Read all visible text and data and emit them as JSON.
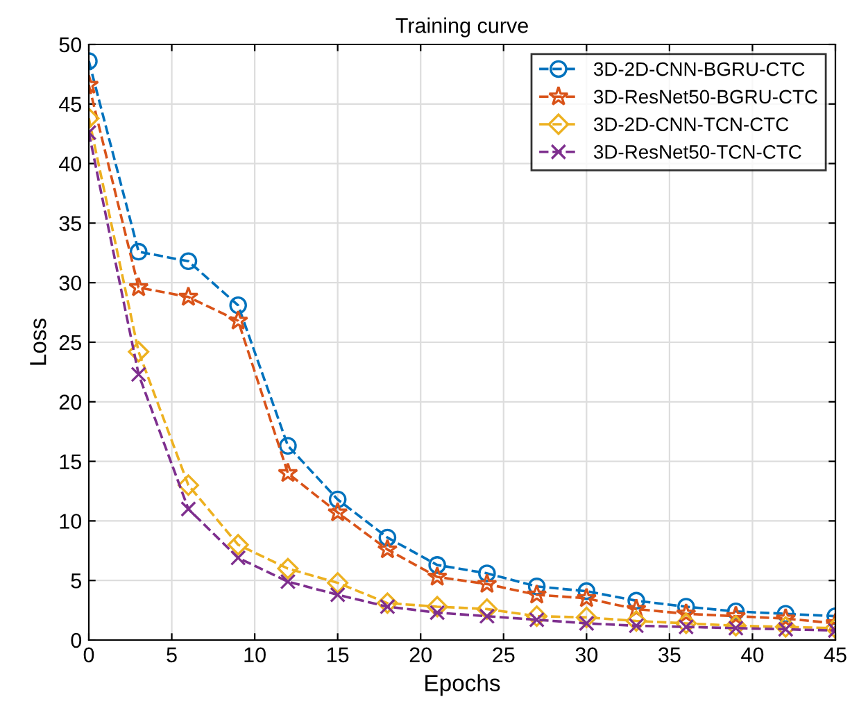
{
  "chart_data": {
    "type": "line",
    "title": "Training curve",
    "xlabel": "Epochs",
    "ylabel": "Loss",
    "x": [
      0,
      3,
      6,
      9,
      12,
      15,
      18,
      21,
      24,
      27,
      30,
      33,
      36,
      39,
      42,
      45
    ],
    "series": [
      {
        "name": "3D-2D-CNN-BGRU-CTC",
        "color": "#0072bd",
        "marker": "circle",
        "values": [
          48.6,
          32.6,
          31.8,
          28.1,
          16.3,
          11.8,
          8.6,
          6.3,
          5.6,
          4.5,
          4.1,
          3.3,
          2.8,
          2.4,
          2.2,
          2.0
        ]
      },
      {
        "name": "3D-ResNet50-BGRU-CTC",
        "color": "#d95319",
        "marker": "star",
        "values": [
          46.6,
          29.6,
          28.8,
          26.8,
          14.0,
          10.7,
          7.6,
          5.3,
          4.7,
          3.8,
          3.5,
          2.6,
          2.2,
          2.0,
          1.8,
          1.4
        ]
      },
      {
        "name": "3D-2D-CNN-TCN-CTC",
        "color": "#edb120",
        "marker": "diamond",
        "values": [
          43.8,
          24.2,
          13.0,
          8.0,
          6.0,
          4.8,
          3.1,
          2.8,
          2.6,
          2.0,
          1.9,
          1.6,
          1.4,
          1.2,
          1.1,
          1.0
        ]
      },
      {
        "name": "3D-ResNet50-TCN-CTC",
        "color": "#7e2f8e",
        "marker": "cross",
        "values": [
          42.6,
          22.3,
          11.0,
          6.9,
          4.9,
          3.8,
          2.8,
          2.3,
          2.0,
          1.7,
          1.4,
          1.2,
          1.1,
          1.0,
          0.9,
          0.8
        ]
      }
    ],
    "xlim": [
      0,
      45
    ],
    "xticks": [
      0,
      5,
      10,
      15,
      20,
      25,
      30,
      35,
      40,
      45
    ],
    "ylim": [
      0,
      50
    ],
    "yticks": [
      0,
      5,
      10,
      15,
      20,
      25,
      30,
      35,
      40,
      45,
      50
    ],
    "grid": true,
    "legend": "top right",
    "line_style": "dashed"
  }
}
